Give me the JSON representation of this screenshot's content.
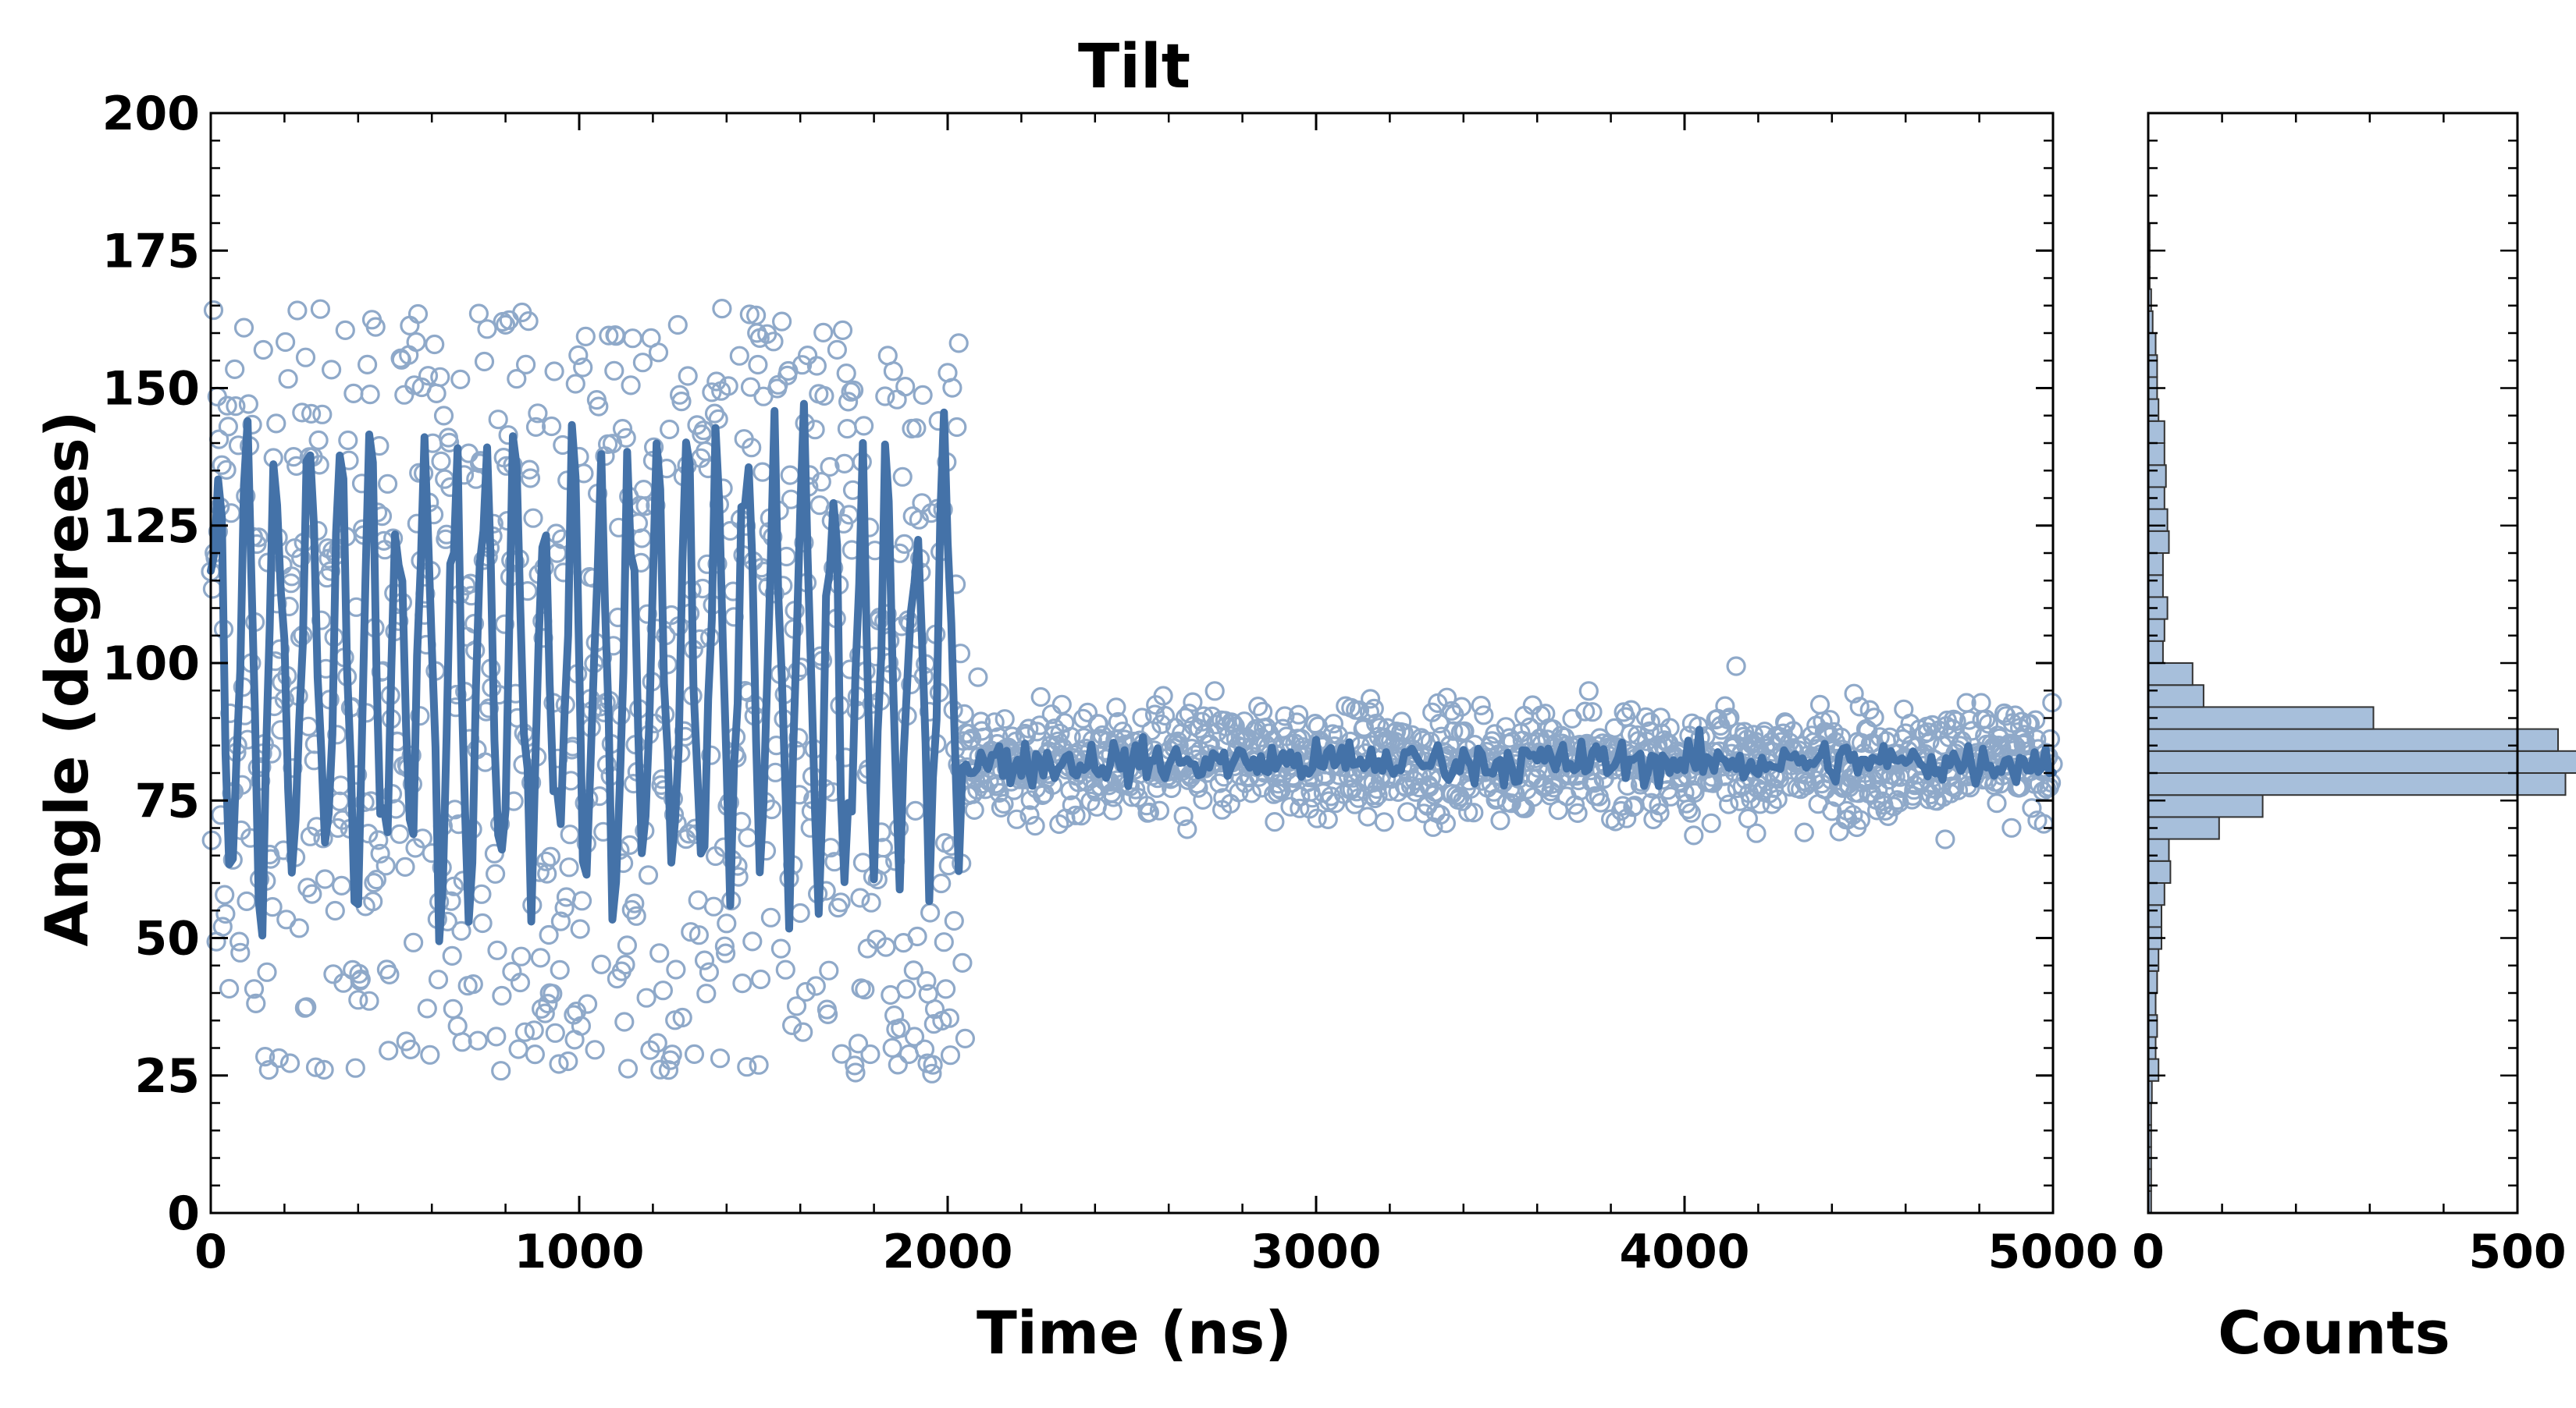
{
  "chart_data": [
    {
      "type": "scatter",
      "title": "Tilt",
      "xlabel": "Time (ns)",
      "ylabel": "Angle (degrees)",
      "xlim": [
        0,
        5000
      ],
      "ylim": [
        0,
        200
      ],
      "x_ticks": [
        "0",
        "1000",
        "2000",
        "3000",
        "4000",
        "5000"
      ],
      "y_ticks": [
        "0",
        "25",
        "50",
        "75",
        "100",
        "125",
        "150",
        "175",
        "200"
      ],
      "grid": false,
      "legend": "none",
      "marker": "open-circle",
      "series": [
        {
          "style": "scatter",
          "description_phase_1": {
            "x_range": [
              0,
              2050
            ],
            "mean": 95,
            "spread": 45
          },
          "description_phase_2": {
            "x_range": [
              2050,
              5000
            ],
            "mean": 82,
            "spread": 7
          },
          "point_spacing_ns": 2.5
        },
        {
          "style": "line",
          "phase_1": {
            "x_range": [
              0,
              2050
            ],
            "oscillation_min": 45,
            "oscillation_max": 148
          },
          "phase_2": {
            "x_range": [
              2050,
              5000
            ],
            "center": 82,
            "fluctuation": 6
          },
          "sample_spacing_ns": 10
        }
      ],
      "colors": {
        "scatter_edge": "#8fa9c9",
        "line": "#4472a8"
      }
    },
    {
      "type": "bar",
      "orientation": "horizontal",
      "xlabel": "Counts",
      "xlim": [
        0,
        500
      ],
      "ylim": [
        0,
        200
      ],
      "x_ticks": [
        "0",
        "500"
      ],
      "bin_width": 4,
      "bins": [
        {
          "y": 0,
          "count": 4
        },
        {
          "y": 4,
          "count": 4
        },
        {
          "y": 8,
          "count": 4
        },
        {
          "y": 12,
          "count": 4
        },
        {
          "y": 16,
          "count": 4
        },
        {
          "y": 20,
          "count": 5
        },
        {
          "y": 24,
          "count": 14
        },
        {
          "y": 28,
          "count": 10
        },
        {
          "y": 32,
          "count": 12
        },
        {
          "y": 36,
          "count": 10
        },
        {
          "y": 40,
          "count": 12
        },
        {
          "y": 44,
          "count": 14
        },
        {
          "y": 48,
          "count": 18
        },
        {
          "y": 52,
          "count": 18
        },
        {
          "y": 56,
          "count": 22
        },
        {
          "y": 60,
          "count": 30
        },
        {
          "y": 64,
          "count": 28
        },
        {
          "y": 68,
          "count": 96
        },
        {
          "y": 72,
          "count": 155
        },
        {
          "y": 76,
          "count": 565
        },
        {
          "y": 80,
          "count": 635
        },
        {
          "y": 84,
          "count": 555
        },
        {
          "y": 88,
          "count": 305
        },
        {
          "y": 92,
          "count": 75
        },
        {
          "y": 96,
          "count": 60
        },
        {
          "y": 100,
          "count": 20
        },
        {
          "y": 104,
          "count": 22
        },
        {
          "y": 108,
          "count": 26
        },
        {
          "y": 112,
          "count": 20
        },
        {
          "y": 116,
          "count": 20
        },
        {
          "y": 120,
          "count": 28
        },
        {
          "y": 124,
          "count": 26
        },
        {
          "y": 128,
          "count": 22
        },
        {
          "y": 132,
          "count": 24
        },
        {
          "y": 136,
          "count": 22
        },
        {
          "y": 140,
          "count": 22
        },
        {
          "y": 144,
          "count": 14
        },
        {
          "y": 148,
          "count": 12
        },
        {
          "y": 152,
          "count": 12
        },
        {
          "y": 156,
          "count": 10
        },
        {
          "y": 160,
          "count": 6
        },
        {
          "y": 164,
          "count": 4
        },
        {
          "y": 168,
          "count": 2
        },
        {
          "y": 172,
          "count": 2
        },
        {
          "y": 176,
          "count": 2
        }
      ],
      "colors": {
        "bar_fill": "#a7bfdb",
        "bar_edge": "#333333"
      }
    }
  ]
}
